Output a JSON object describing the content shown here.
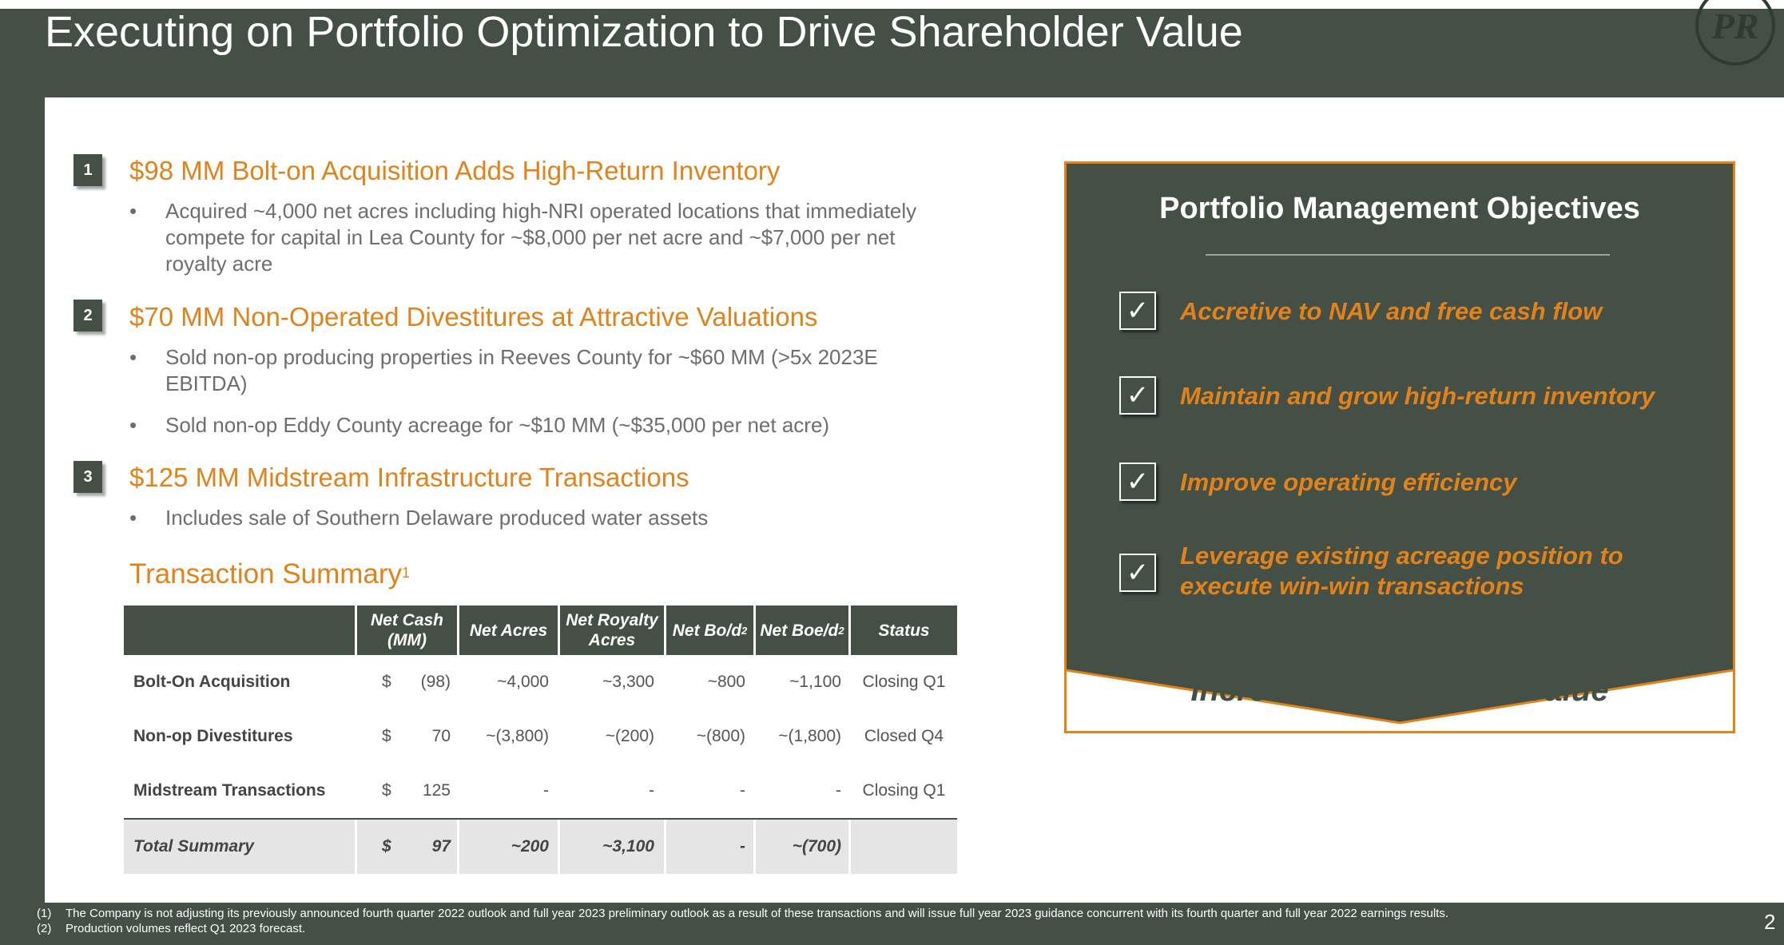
{
  "header": {
    "title": "Executing on Portfolio Optimization to Drive Shareholder Value",
    "logo_text": "PR"
  },
  "sections": [
    {
      "number": "1",
      "title": "$98 MM Bolt-on Acquisition Adds High-Return Inventory",
      "bullets": [
        "Acquired ~4,000 net acres including high-NRI operated locations that immediately compete for capital in Lea County for ~$8,000 per net acre and ~$7,000 per net royalty acre"
      ]
    },
    {
      "number": "2",
      "title": "$70 MM Non-Operated Divestitures at Attractive Valuations",
      "bullets": [
        "Sold non-op producing properties in Reeves County for ~$60 MM (>5x 2023E EBITDA)",
        "Sold non-op Eddy County acreage for ~$10 MM (~$35,000 per net acre)"
      ]
    },
    {
      "number": "3",
      "title": "$125 MM Midstream Infrastructure Transactions",
      "bullets": [
        "Includes sale of Southern Delaware produced water assets"
      ]
    }
  ],
  "bullet_glyph": "•",
  "transaction_summary": {
    "title": "Transaction Summary",
    "title_sup": "1",
    "headers": {
      "net_cash": "Net Cash (MM)",
      "net_acres": "Net Acres",
      "net_royalty": "Net Royalty Acres",
      "net_bo": "Net Bo/d",
      "net_bo_sup": "2",
      "net_boe": "Net Boe/d",
      "net_boe_sup": "2",
      "status": "Status"
    },
    "rows": [
      {
        "name": "Bolt-On Acquisition",
        "currency": "$",
        "net_cash": "(98)",
        "net_acres": "~4,000",
        "net_royalty": "~3,300",
        "net_bo": "~800",
        "net_boe": "~1,100",
        "status": "Closing Q1"
      },
      {
        "name": "Non-op Divestitures",
        "currency": "$",
        "net_cash": "70",
        "net_acres": "~(3,800)",
        "net_royalty": "~(200)",
        "net_bo": "~(800)",
        "net_boe": "~(1,800)",
        "status": "Closed Q4"
      },
      {
        "name": "Midstream Transactions",
        "currency": "$",
        "net_cash": "125",
        "net_acres": "-",
        "net_royalty": "-",
        "net_bo": "-",
        "net_boe": "-",
        "status": "Closing Q1"
      }
    ],
    "total": {
      "name": "Total Summary",
      "currency": "$",
      "net_cash": "97",
      "net_acres": "~200",
      "net_royalty": "~3,100",
      "net_bo": "-",
      "net_boe": "~(700)",
      "status": ""
    }
  },
  "panel": {
    "title": "Portfolio Management Objectives",
    "check_glyph": "✓",
    "objectives": [
      "Accretive to NAV and free cash flow",
      "Maintain and grow high-return inventory",
      "Improve operating efficiency",
      "Leverage existing acreage position to execute win-win transactions"
    ],
    "bottom_text": "Increase Shareholder Value"
  },
  "footnotes": [
    {
      "num": "(1)",
      "text": "The Company is not adjusting its previously announced fourth quarter 2022 outlook and full year 2023 preliminary outlook as a result of these transactions and will issue full year 2023 guidance concurrent with its fourth quarter and full year 2022 earnings results."
    },
    {
      "num": "(2)",
      "text": "Production volumes reflect Q1 2023 forecast."
    }
  ],
  "page_number": "2",
  "colors": {
    "dark_green": "#444f46",
    "accent_orange": "#e1821b",
    "body_gray": "#6e6e6e"
  }
}
